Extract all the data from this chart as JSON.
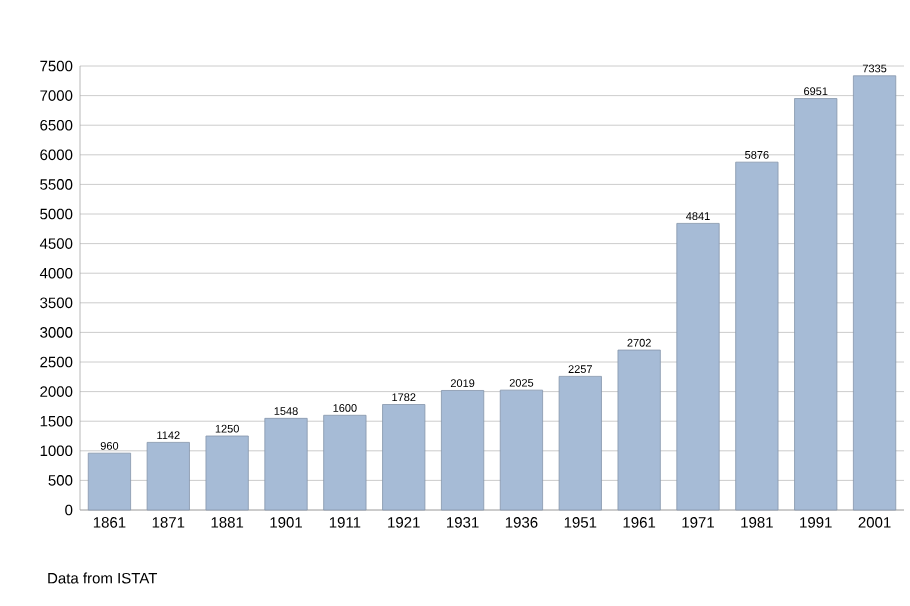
{
  "chart_data": {
    "type": "bar",
    "categories": [
      "1861",
      "1871",
      "1881",
      "1901",
      "1911",
      "1921",
      "1931",
      "1936",
      "1951",
      "1961",
      "1971",
      "1981",
      "1991",
      "2001"
    ],
    "values": [
      960,
      1142,
      1250,
      1548,
      1600,
      1782,
      2019,
      2025,
      2257,
      2702,
      4841,
      5876,
      6951,
      7335
    ],
    "color": "#a6bbd6",
    "ylim": [
      0,
      7500
    ],
    "yticks": [
      0,
      500,
      1000,
      1500,
      2000,
      2500,
      3000,
      3500,
      4000,
      4500,
      5000,
      5500,
      6000,
      6500,
      7000,
      7500
    ],
    "grid": "y",
    "data_labels": true,
    "annotations": [
      "Data from ISTAT"
    ]
  }
}
